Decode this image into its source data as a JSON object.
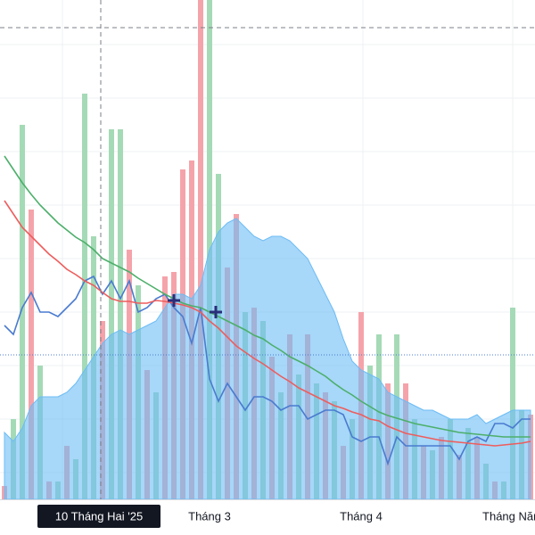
{
  "chart_data": {
    "type": "combo",
    "categories": [
      null,
      null,
      null,
      null,
      null,
      null,
      null,
      null,
      null,
      null,
      null,
      null,
      null,
      null,
      null,
      null,
      null,
      null,
      null,
      null,
      null,
      null,
      null,
      "Tháng 3",
      null,
      null,
      null,
      null,
      null,
      null,
      null,
      null,
      null,
      null,
      null,
      null,
      null,
      null,
      null,
      null,
      "Tháng 4",
      null,
      null,
      null,
      null,
      null,
      null,
      null,
      null,
      null,
      null,
      null,
      null,
      null,
      null,
      null,
      null,
      "Tháng Năm",
      null,
      null
    ],
    "ylim": [
      0,
      560
    ],
    "crosshair_label": "10 Tháng Hai '25",
    "volume": {
      "values": [
        15,
        90,
        420,
        325,
        150,
        20,
        20,
        60,
        45,
        455,
        295,
        200,
        415,
        415,
        280,
        240,
        145,
        120,
        250,
        255,
        370,
        380,
        560,
        560,
        365,
        260,
        320,
        210,
        215,
        200,
        160,
        120,
        185,
        140,
        185,
        130,
        120,
        110,
        60,
        90,
        210,
        150,
        185,
        130,
        185,
        130,
        90,
        60,
        55,
        70,
        90,
        50,
        80,
        70,
        40,
        20,
        20,
        215,
        100,
        95
      ],
      "colors": [
        "#f5a3aa",
        "#a5dab6",
        "#a5dab6",
        "#f5a3aa",
        "#a5dab6",
        "#f5a3aa",
        "#a5dab6",
        "#f5a3aa",
        "#a5dab6",
        "#a5dab6",
        "#a5dab6",
        "#f5a3aa",
        "#a5dab6",
        "#a5dab6",
        "#f5a3aa",
        "#a5dab6",
        "#f5a3aa",
        "#a5dab6",
        "#f5a3aa",
        "#f5a3aa",
        "#f5a3aa",
        "#f5a3aa",
        "#f5a3aa",
        "#a5dab6",
        "#a5dab6",
        "#f5a3aa",
        "#f5a3aa",
        "#a5dab6",
        "#f5a3aa",
        "#a5dab6",
        "#f5a3aa",
        "#a5dab6",
        "#f5a3aa",
        "#a5dab6",
        "#f5a3aa",
        "#a5dab6",
        "#f5a3aa",
        "#a5dab6",
        "#f5a3aa",
        "#a5dab6",
        "#f5a3aa",
        "#a5dab6",
        "#a5dab6",
        "#f5a3aa",
        "#a5dab6",
        "#f5a3aa",
        "#a5dab6",
        "#f5a3aa",
        "#a5dab6",
        "#f5a3aa",
        "#a5dab6",
        "#f5a3aa",
        "#a5dab6",
        "#f5a3aa",
        "#a5dab6",
        "#f5a3aa",
        "#a5dab6",
        "#a5dab6",
        "#a5dab6",
        "#f5a3aa"
      ]
    },
    "area": {
      "color": "#6cbcf5",
      "values": [
        75,
        65,
        80,
        105,
        115,
        115,
        115,
        120,
        130,
        145,
        160,
        175,
        185,
        190,
        185,
        190,
        195,
        200,
        215,
        230,
        230,
        225,
        240,
        280,
        300,
        310,
        315,
        305,
        295,
        290,
        295,
        295,
        290,
        280,
        270,
        250,
        230,
        210,
        180,
        155,
        145,
        140,
        135,
        120,
        115,
        110,
        105,
        100,
        100,
        95,
        90,
        90,
        90,
        95,
        85,
        90,
        95,
        100,
        100,
        100
      ]
    },
    "lines": [
      {
        "color": "#4a7bd0",
        "values": [
          195,
          185,
          215,
          232,
          210,
          210,
          205,
          215,
          225,
          245,
          250,
          230,
          245,
          225,
          245,
          210,
          215,
          225,
          230,
          215,
          205,
          175,
          215,
          135,
          110,
          130,
          115,
          100,
          115,
          115,
          110,
          100,
          105,
          105,
          90,
          95,
          100,
          100,
          95,
          70,
          65,
          70,
          70,
          40,
          70,
          60,
          60,
          60,
          60,
          60,
          60,
          45,
          65,
          70,
          65,
          85,
          85,
          80,
          90,
          90
        ]
      },
      {
        "color": "#ee5d5d",
        "values": [
          335,
          320,
          305,
          295,
          285,
          275,
          267,
          258,
          252,
          245,
          240,
          232,
          225,
          222,
          222,
          220,
          220,
          223,
          222,
          220,
          218,
          215,
          210,
          200,
          192,
          182,
          172,
          165,
          158,
          152,
          145,
          138,
          132,
          125,
          120,
          115,
          110,
          105,
          102,
          98,
          95,
          90,
          88,
          82,
          78,
          74,
          72,
          70,
          68,
          66,
          65,
          64,
          63,
          62,
          61,
          60,
          61,
          62,
          63,
          65
        ]
      },
      {
        "color": "#4caf6a",
        "values": [
          385,
          370,
          355,
          342,
          330,
          320,
          310,
          302,
          294,
          288,
          280,
          270,
          265,
          260,
          255,
          248,
          242,
          236,
          230,
          225,
          220,
          217,
          215,
          210,
          205,
          200,
          195,
          190,
          184,
          180,
          173,
          167,
          160,
          155,
          150,
          144,
          138,
          130,
          123,
          117,
          110,
          104,
          98,
          94,
          91,
          88,
          85,
          83,
          81,
          79,
          77,
          75,
          74,
          73,
          72,
          71,
          70,
          70,
          70,
          70
        ]
      }
    ]
  }
}
